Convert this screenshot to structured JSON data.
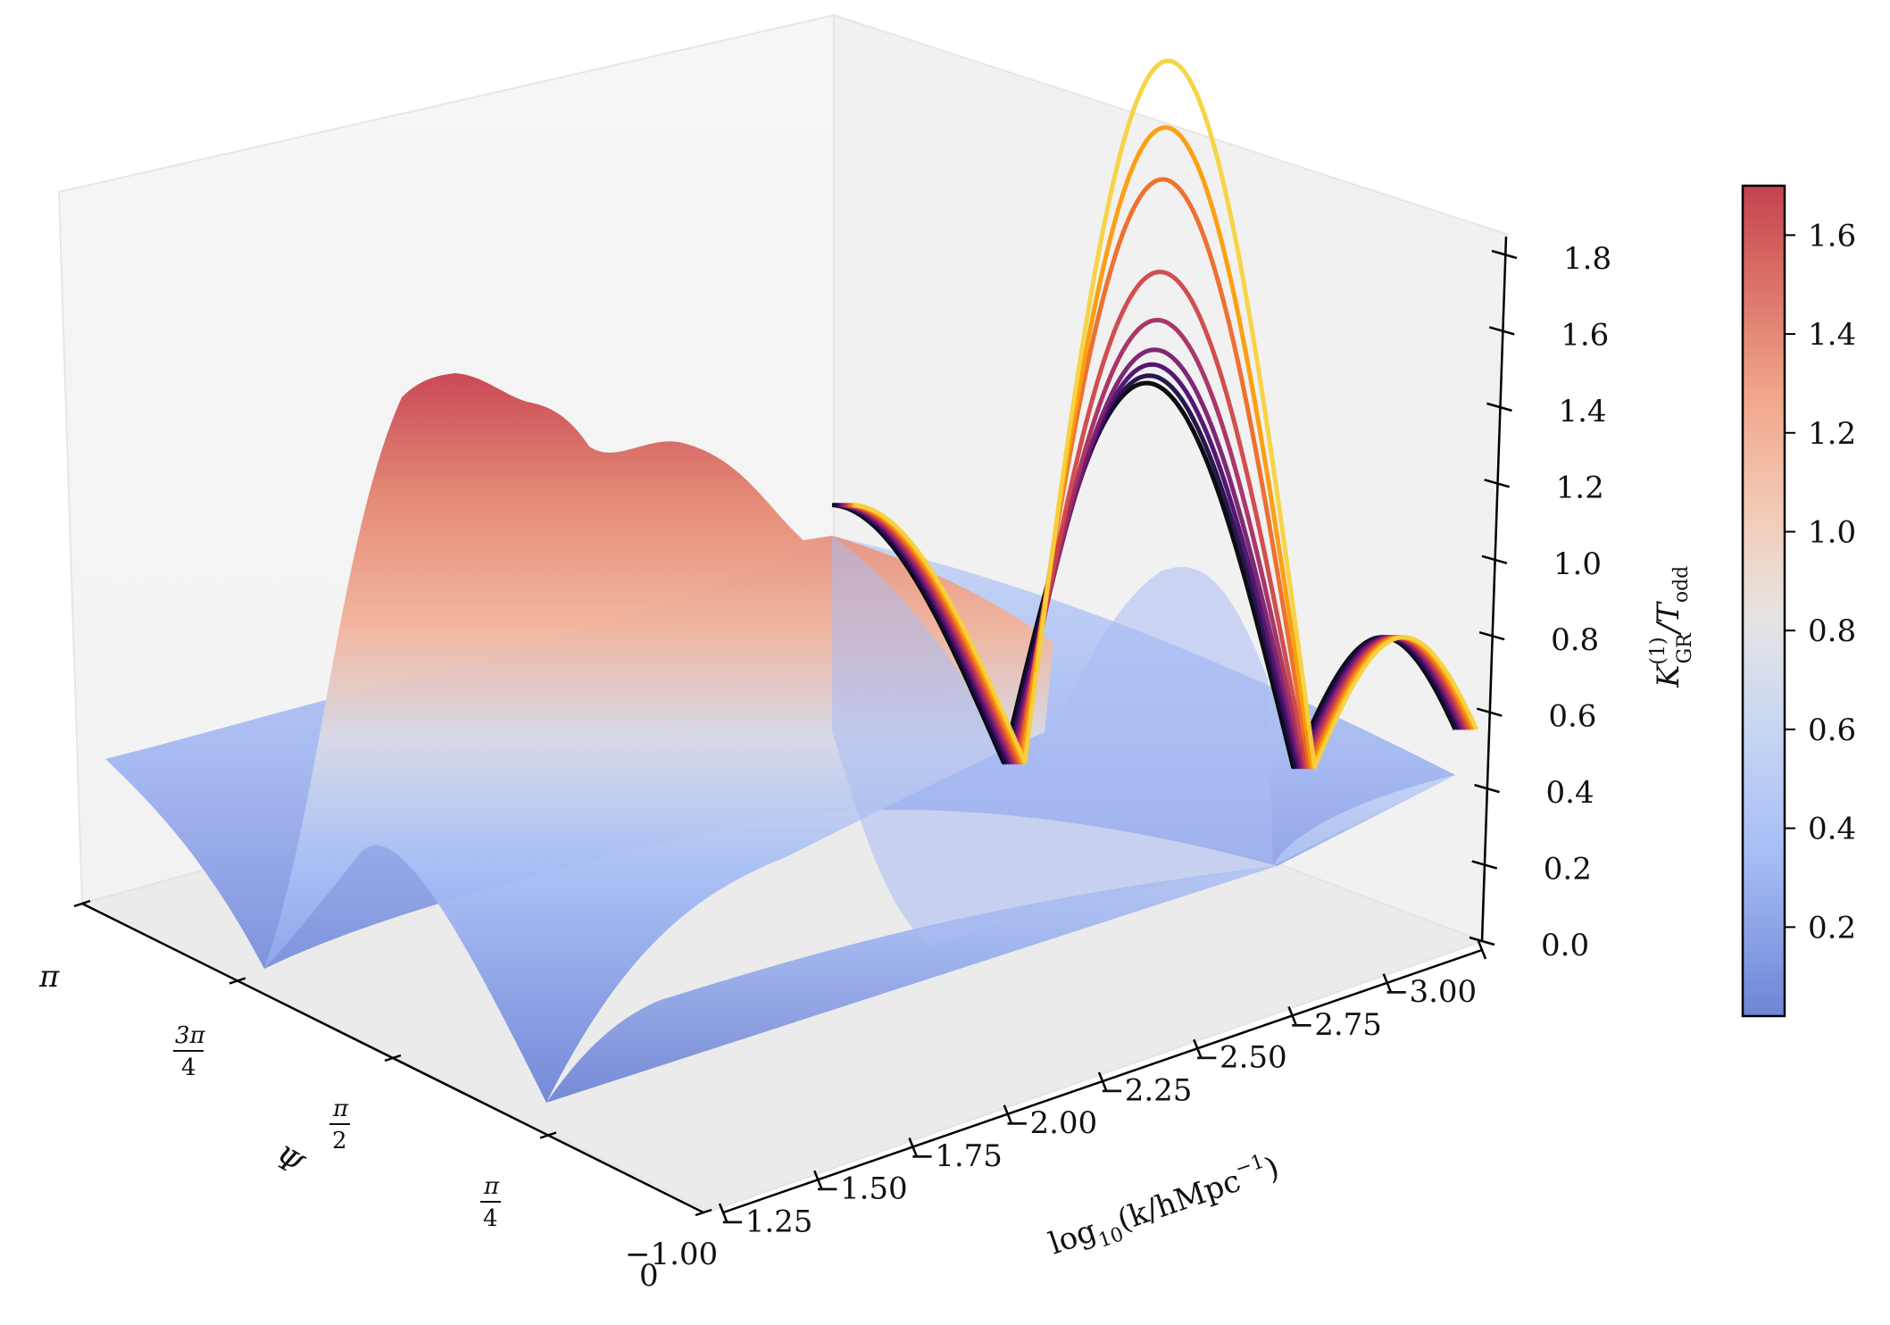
{
  "chart_data": {
    "type": "surface",
    "title": "",
    "x_axis": {
      "label": "log",
      "label_sub": "10",
      "label_rest": "(k/hMpc",
      "label_sup": "−1",
      "label_close": ")",
      "range": [
        -3.0,
        -1.0
      ],
      "ticks": [
        -3.0,
        -2.75,
        -2.5,
        -2.25,
        -2.0,
        -1.75,
        -1.5,
        -1.25,
        -1.0
      ],
      "tick_labels": [
        "−3.00",
        "−2.75",
        "−2.50",
        "−2.25",
        "−2.00",
        "−1.75",
        "−1.50",
        "−1.25",
        "−1.00"
      ]
    },
    "psi_axis": {
      "label": "Ψ",
      "range": [
        0,
        3.14159
      ],
      "ticks": [
        0,
        0.7854,
        1.5708,
        2.3562,
        3.14159
      ],
      "tick_labels": [
        "0",
        "π/4",
        "π/2",
        "3π/4",
        "π"
      ],
      "tick_label_0": "0",
      "tick_label_pi": "π",
      "frac_pi4_num": "π",
      "frac_pi4_den": "4",
      "frac_pi2_num": "π",
      "frac_pi2_den": "2",
      "frac_3pi4_num": "3π",
      "frac_3pi4_den": "4"
    },
    "z_axis": {
      "label_main": "K",
      "label_sup": "(1)",
      "label_sub": "GR",
      "label_rest": "/T",
      "label_rest_sub": "odd",
      "range": [
        0.0,
        1.9
      ],
      "ticks": [
        0.0,
        0.2,
        0.4,
        0.6,
        0.8,
        1.0,
        1.2,
        1.4,
        1.6,
        1.8
      ],
      "tick_labels": [
        "0.0",
        "0.2",
        "0.4",
        "0.6",
        "0.8",
        "1.0",
        "1.2",
        "1.4",
        "1.6",
        "1.8"
      ]
    },
    "colorbar": {
      "colormap": "coolwarm",
      "range": [
        0.02,
        1.7
      ],
      "ticks": [
        0.2,
        0.4,
        0.6,
        0.8,
        1.0,
        1.2,
        1.4,
        1.6
      ],
      "tick_labels": [
        "0.2",
        "0.4",
        "0.6",
        "0.8",
        "1.0",
        "1.2",
        "1.4",
        "1.6"
      ],
      "colors": [
        "#6f84d6",
        "#a7bff6",
        "#d2dbee",
        "#ebdcd3",
        "#f2b49c",
        "#e58872",
        "#c83a4d"
      ]
    },
    "surface_profile_psi_pi2": {
      "description_free_values": true,
      "x": [
        -1.0,
        -1.25,
        -1.5,
        -1.75,
        -2.0,
        -2.1,
        -2.25,
        -2.4,
        -2.5,
        -2.6,
        -2.75,
        -2.9,
        -3.0
      ],
      "z": [
        0.9,
        1.15,
        1.45,
        1.72,
        1.65,
        1.5,
        1.35,
        1.4,
        1.3,
        1.1,
        0.98,
        0.92,
        0.9
      ]
    },
    "curves_at_psi0": {
      "x_knots": [
        -1.0,
        -1.3,
        -1.55,
        -1.75,
        -1.95,
        -2.15,
        -2.35,
        -2.5,
        -2.75,
        -3.0
      ],
      "colors": [
        "#000004",
        "#1b0c41",
        "#4a0c6b",
        "#781c6d",
        "#a52c60",
        "#cf4446",
        "#ed6925",
        "#fb9b06",
        "#f7d13d"
      ],
      "peak_values": [
        1.03,
        1.05,
        1.08,
        1.12,
        1.2,
        1.33,
        1.58,
        1.72,
        1.9
      ],
      "line_width_note": ""
    }
  }
}
